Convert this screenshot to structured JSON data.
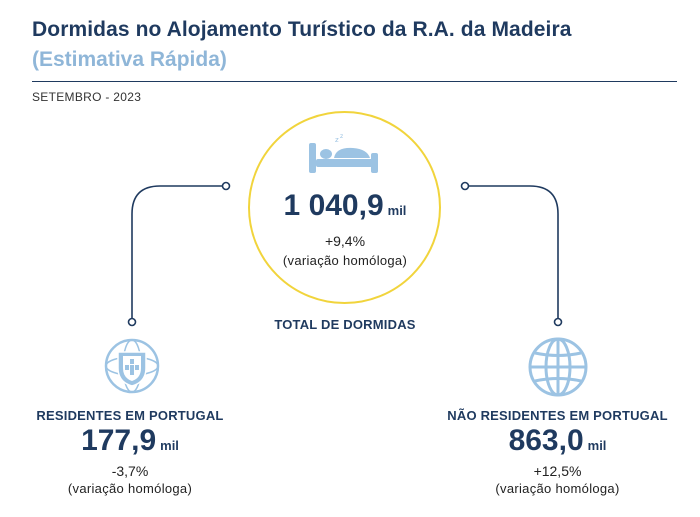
{
  "header": {
    "title": "Dormidas no Alojamento Turístico da R.A. da Madeira",
    "subtitle": "(Estimativa Rápida)",
    "period": "SETEMBRO - 2023"
  },
  "total": {
    "value": "1 040,9",
    "unit": "mil",
    "variation": "+9,4%",
    "variation_label": "(variação homóloga)",
    "label": "TOTAL DE DORMIDAS",
    "icon": "bed-icon"
  },
  "residents": {
    "label": "RESIDENTES EM PORTUGAL",
    "value": "177,9",
    "unit": "mil",
    "variation": "-3,7%",
    "variation_label": "(variação homóloga)",
    "icon": "portugal-shield-icon"
  },
  "non_residents": {
    "label": "NÃO RESIDENTES EM PORTUGAL",
    "value": "863,0",
    "unit": "mil",
    "variation": "+12,5%",
    "variation_label": "(variação homóloga)",
    "icon": "globe-icon"
  },
  "colors": {
    "navy": "#1f3a5f",
    "light_blue": "#8fb6d8",
    "icon_blue": "#9cc3e3",
    "yellow_ring": "#f1d43c"
  }
}
